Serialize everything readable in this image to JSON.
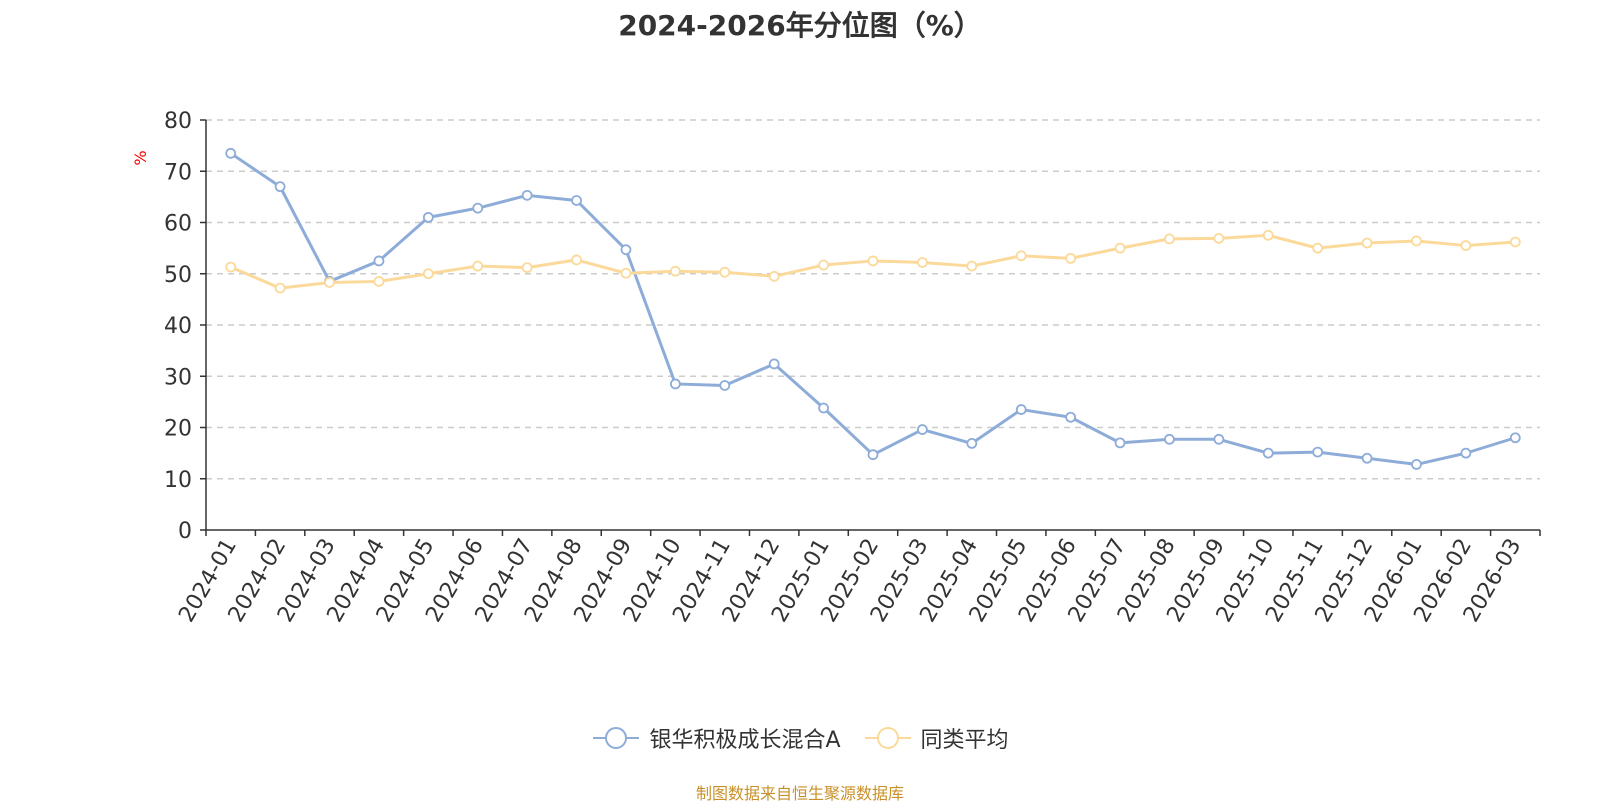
{
  "chart_data": {
    "type": "line",
    "title": "2024-2026年分位图（%）",
    "ylabel": "%",
    "xlabel": "",
    "ylim": [
      0,
      80
    ],
    "yticks": [
      0,
      10,
      20,
      30,
      40,
      50,
      60,
      70,
      80
    ],
    "grid": "horizontal-dashed",
    "legend_position": "bottom",
    "categories": [
      "2024-01",
      "2024-02",
      "2024-03",
      "2024-04",
      "2024-05",
      "2024-06",
      "2024-07",
      "2024-08",
      "2024-09",
      "2024-10",
      "2024-11",
      "2024-12",
      "2025-01",
      "2025-02",
      "2025-03",
      "2025-04",
      "2025-05",
      "2025-06",
      "2025-07",
      "2025-08",
      "2025-09",
      "2025-10",
      "2025-11",
      "2025-12",
      "2026-01",
      "2026-02",
      "2026-03"
    ],
    "series": [
      {
        "name": "银华积极成长混合A",
        "color": "#8eacd8",
        "values": [
          73.5,
          67.0,
          48.5,
          52.5,
          61.0,
          62.8,
          65.3,
          64.3,
          54.7,
          28.5,
          28.2,
          32.4,
          23.8,
          14.7,
          19.6,
          16.9,
          23.5,
          22.0,
          17.0,
          17.7,
          17.7,
          15.0,
          15.2,
          14.0,
          12.8,
          15.0,
          18.0
        ]
      },
      {
        "name": "同类平均",
        "color": "#fbd99a",
        "values": [
          51.3,
          47.2,
          48.3,
          48.5,
          50.0,
          51.5,
          51.2,
          52.7,
          50.1,
          50.5,
          50.3,
          49.5,
          51.7,
          52.5,
          52.2,
          51.5,
          53.5,
          53.0,
          55.0,
          56.8,
          56.9,
          57.5,
          55.0,
          56.0,
          56.4,
          55.5,
          56.2
        ]
      }
    ],
    "axis_color": "#333333",
    "grid_color": "#cccccc",
    "ylabel_color": "#ff0000"
  },
  "source_note": "制图数据来自恒生聚源数据库"
}
